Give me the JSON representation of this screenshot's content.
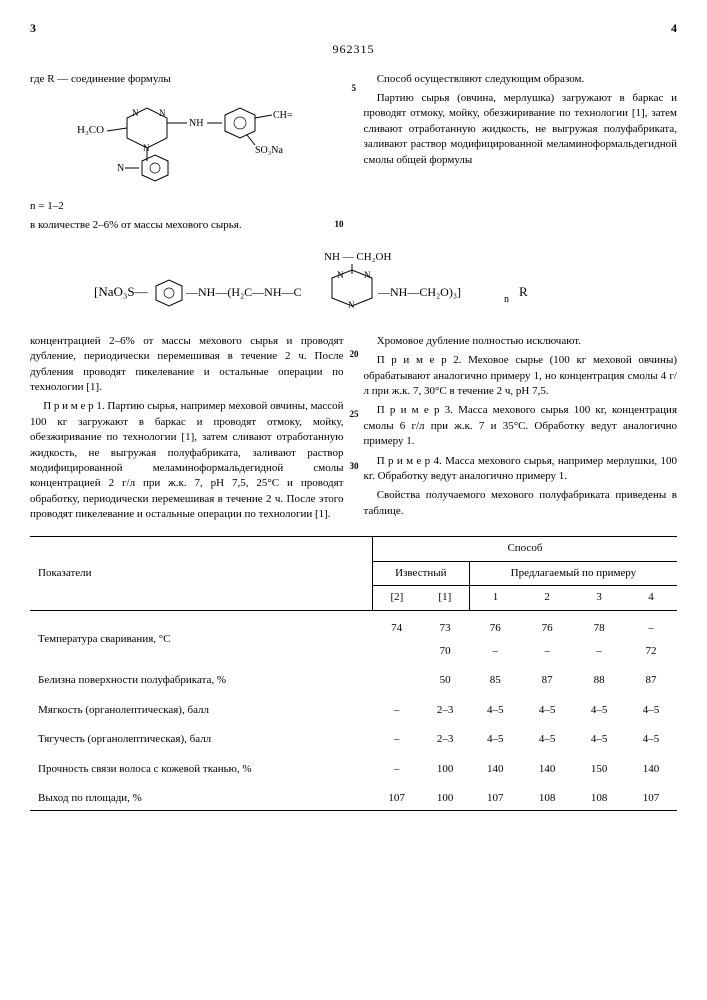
{
  "header": {
    "page_left": "3",
    "page_right": "4",
    "doc_number": "962315"
  },
  "left_col": {
    "line1": "где R — соединение формулы",
    "svg_formula_note": "H₃CO- triazine -NH- phenyl -CH= / SO₃Na / N-phenyl",
    "n_line": "n = 1–2",
    "qty_line": "в количестве 2–6% от массы мехового сырья.",
    "p1": "концентрацией 2–6% от массы мехового сырья и проводят дубление, периодически перемешивая в течение 2 ч. После дубления проводят пикелевание и остальные операции по технологии [1].",
    "p2": "П р и м е р   1. Партию сырья, например меховой овчины, массой 100 кг загружают в баркас и проводят отмоку, мойку, обезжиривание по технологии [1], затем сливают отработанную жидкость, не выгружая полуфабриката, заливают раствор модифицированной меламиноформальдегидной смолы концентрацией 2 г/л при ж.к. 7, рН 7,5, 25°С и проводят обработку, периодически перемешивая в течение 2 ч. После этого проводят пикелевание и остальные операции по технологии [1]."
  },
  "right_col": {
    "p1": "Способ осуществляют следующим образом.",
    "p2": "Партию сырья (овчина, мерлушка) загружают в баркас и проводят отмоку, мойку, обезжиривание по технологии [1], затем сливают отработанную жидкость, не выгружая полуфабриката, заливают раствор модифицированной меламиноформальдегидной смолы общей формулы",
    "p3": "Хромовое дубление полностью исключают.",
    "p4": "П р и м е р   2. Меховое сырье (100 кг меховой овчины) обрабатывают аналогично примеру 1, но концентрация смолы 4 г/л при ж.к. 7, 30°С в течение 2 ч, рН 7,5.",
    "p5": "П р и м е р   3. Масса мехового сырья 100 кг, концентрация смолы 6 г/л при ж.к. 7 и 35°С. Обработку ведут аналогично примеру 1.",
    "p6": "П р и м е р   4. Масса мехового сырья, например мерлушки, 100 кг. Обработку ведут аналогично примеру 1.",
    "p7": "Свойства получаемого мехового полуфабриката приведены в таблице."
  },
  "big_formula": {
    "left": "[NaO₃S—⟨⟩—NH—(H₂C—NH—C",
    "top": "NH—CH₂OH",
    "right": "—NH—CH₂O)₃]ₙ R"
  },
  "table": {
    "header1": "Показатели",
    "header2": "Способ",
    "header3": "Известный",
    "header4": "Предлагаемый по примеру",
    "sub_known": [
      "[2]",
      "[1]"
    ],
    "sub_prop": [
      "1",
      "2",
      "3",
      "4"
    ],
    "rows": [
      {
        "label": "Температура сваривания, °С",
        "vals": [
          "74",
          "73\n70",
          "76\n–",
          "76\n–",
          "78\n–",
          "–\n72"
        ]
      },
      {
        "label": "Белизна поверхности полуфабриката, %",
        "vals": [
          "",
          "50",
          "85",
          "87",
          "88",
          "87"
        ]
      },
      {
        "label": "Мягкость (органолептическая), балл",
        "vals": [
          "–",
          "2–3",
          "4–5",
          "4–5",
          "4–5",
          "4–5"
        ]
      },
      {
        "label": "Тягучесть (органолептическая), балл",
        "vals": [
          "–",
          "2–3",
          "4–5",
          "4–5",
          "4–5",
          "4–5"
        ]
      },
      {
        "label": "Прочность связи волоса с кожевой тканью, %",
        "vals": [
          "–",
          "100",
          "140",
          "140",
          "150",
          "140"
        ]
      },
      {
        "label": "Выход по площади, %",
        "vals": [
          "107",
          "100",
          "107",
          "108",
          "108",
          "107"
        ]
      }
    ]
  },
  "line_numbers": [
    "5",
    "10",
    "20",
    "25",
    "30"
  ]
}
